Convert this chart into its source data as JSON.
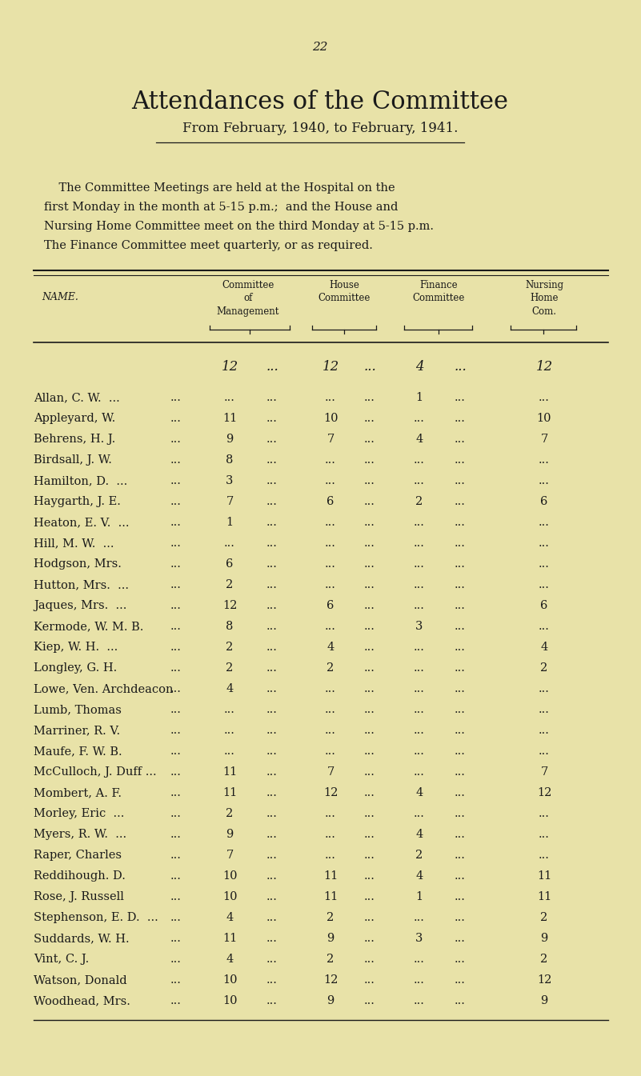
{
  "page_number": "22",
  "title": "Attendances of the Committee",
  "subtitle": "From February, 1940, to February, 1941.",
  "body_line1": "    The Committee Meetings are held at the Hospital on the",
  "body_line2": "first Monday in the month at 5-15 p.m.;  and the House and",
  "body_line3": "Nursing Home Committee meet on the third Monday at 5-15 p.m.",
  "body_line4": "The Finance Committee meet quarterly, or as required.",
  "bg_color": "#e8e2a8",
  "text_color": "#1a1a1a",
  "max_row": [
    "12",
    "...",
    "12",
    "...",
    "4",
    "...",
    "12"
  ],
  "rows": [
    [
      "Allan, C. W.  ...",
      "...",
      "...",
      "...",
      "...",
      "1",
      "...",
      "..."
    ],
    [
      "Appleyard, W.",
      "11",
      "...",
      "10",
      "...",
      "...",
      "...",
      "10"
    ],
    [
      "Behrens, H. J.",
      "9",
      "...",
      "7",
      "...",
      "4",
      "...",
      "7"
    ],
    [
      "Birdsall, J. W.",
      "8",
      "...",
      "...",
      "...",
      "...",
      "...",
      "..."
    ],
    [
      "Hamilton, D.  ...",
      "3",
      "...",
      "...",
      "...",
      "...",
      "...",
      "..."
    ],
    [
      "Haygarth, J. E.",
      "7",
      "...",
      "6",
      "...",
      "2",
      "...",
      "6"
    ],
    [
      "Heaton, E. V.  ...",
      "1",
      "...",
      "...",
      "...",
      "...",
      "...",
      "..."
    ],
    [
      "Hill, M. W.  ...",
      "...",
      "...",
      "...",
      "...",
      "...",
      "...",
      "..."
    ],
    [
      "Hodgson, Mrs.",
      "6",
      "...",
      "...",
      "...",
      "...",
      "...",
      "..."
    ],
    [
      "Hutton, Mrs.  ...",
      "2",
      "...",
      "...",
      "...",
      "...",
      "...",
      "..."
    ],
    [
      "Jaques, Mrs.  ...",
      "12",
      "...",
      "6",
      "...",
      "...",
      "...",
      "6"
    ],
    [
      "Kermode, W. M. B.",
      "8",
      "...",
      "...",
      "...",
      "3",
      "...",
      "..."
    ],
    [
      "Kiep, W. H.  ...",
      "2",
      "...",
      "4",
      "...",
      "...",
      "...",
      "4"
    ],
    [
      "Longley, G. H.",
      "2",
      "...",
      "2",
      "...",
      "...",
      "...",
      "2"
    ],
    [
      "Lowe, Ven. Archdeacon",
      "4",
      "...",
      "...",
      "...",
      "...",
      "...",
      "..."
    ],
    [
      "Lumb, Thomas",
      "...",
      "...",
      "...",
      "...",
      "...",
      "...",
      "..."
    ],
    [
      "Marriner, R. V.",
      "...",
      "...",
      "...",
      "...",
      "...",
      "...",
      "..."
    ],
    [
      "Maufe, F. W. B.",
      "...",
      "...",
      "...",
      "...",
      "...",
      "...",
      "..."
    ],
    [
      "McCulloch, J. Duff ...",
      "11",
      "...",
      "7",
      "...",
      "...",
      "...",
      "7"
    ],
    [
      "Mombert, A. F.",
      "11",
      "...",
      "12",
      "...",
      "4",
      "...",
      "12"
    ],
    [
      "Morley, Eric  ...",
      "2",
      "...",
      "...",
      "...",
      "...",
      "...",
      "..."
    ],
    [
      "Myers, R. W.  ...",
      "9",
      "...",
      "...",
      "...",
      "4",
      "...",
      "..."
    ],
    [
      "Raper, Charles",
      "7",
      "...",
      "...",
      "...",
      "2",
      "...",
      "..."
    ],
    [
      "Reddihough. D.",
      "10",
      "...",
      "11",
      "...",
      "4",
      "...",
      "11"
    ],
    [
      "Rose, J. Russell",
      "10",
      "...",
      "11",
      "...",
      "1",
      "...",
      "11"
    ],
    [
      "Stephenson, E. D.  ...",
      "4",
      "...",
      "2",
      "...",
      "...",
      "...",
      "2"
    ],
    [
      "Suddards, W. H.",
      "11",
      "...",
      "9",
      "...",
      "3",
      "...",
      "9"
    ],
    [
      "Vint, C. J.",
      "4",
      "...",
      "2",
      "...",
      "...",
      "...",
      "2"
    ],
    [
      "Watson, Donald",
      "10",
      "...",
      "12",
      "...",
      "...",
      "...",
      "12"
    ],
    [
      "Woodhead, Mrs.",
      "10",
      "...",
      "9",
      "...",
      "...",
      "...",
      "9"
    ]
  ]
}
